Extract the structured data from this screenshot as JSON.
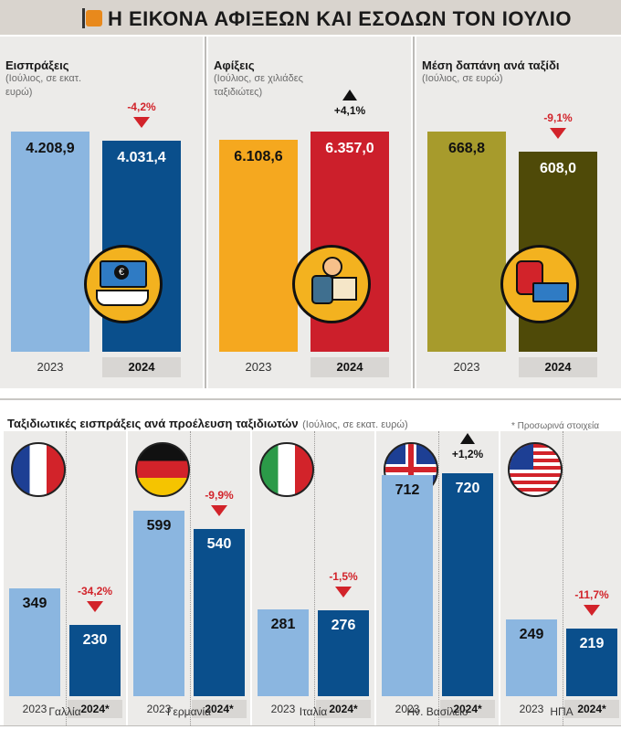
{
  "header": {
    "title": "Η ΕΙΚΟΝΑ ΑΦΙΞΕΩΝ ΚΑΙ ΕΣΟΔΩΝ ΤΟΝ ΙΟΥΛΙΟ"
  },
  "colors": {
    "light_blue": "#8bb6e0",
    "dark_blue": "#0a4f8c",
    "orange": "#f5a81f",
    "red": "#cc1f2b",
    "olive_light": "#a79b2c",
    "olive_dark": "#4f4a08",
    "down_red": "#d2232a"
  },
  "chart_data": [
    {
      "type": "bar",
      "title": "Εισπράξεις",
      "subtitle": "(Ιούλιος, σε εκατ. ευρώ)",
      "categories": [
        "2023",
        "2024"
      ],
      "values": [
        4208.9,
        4031.4
      ],
      "labels": [
        "4.208,9",
        "4.031,4"
      ],
      "change": "-4,2%",
      "direction": "down",
      "icon": "money-hand-icon"
    },
    {
      "type": "bar",
      "title": "Αφίξεις",
      "subtitle": "(Ιούλιος, σε χιλιάδες ταξιδιώτες)",
      "categories": [
        "2023",
        "2024"
      ],
      "values": [
        6108.6,
        6357.0
      ],
      "labels": [
        "6.108,6",
        "6.357,0"
      ],
      "change": "+4,1%",
      "direction": "up",
      "icon": "traveler-icon"
    },
    {
      "type": "bar",
      "title": "Μέση δαπάνη ανά ταξίδι",
      "subtitle": "(Ιούλιος, σε ευρώ)",
      "categories": [
        "2023",
        "2024"
      ],
      "values": [
        668.8,
        608.0
      ],
      "labels": [
        "668,8",
        "608,0"
      ],
      "change": "-9,1%",
      "direction": "down",
      "icon": "cash-stack-icon"
    },
    {
      "type": "bar",
      "title": "Ταξιδιωτικές εισπράξεις ανά προέλευση ταξιδιωτών",
      "subtitle": "(Ιούλιος, σε εκατ. ευρώ)",
      "note": "* Προσωρινά στοιχεία",
      "year_labels": [
        "2023",
        "2024*"
      ],
      "countries": [
        {
          "name": "Γαλλία",
          "flag": "france-flag-icon",
          "v2023": 349,
          "v2024": 230,
          "change": "-34,2%",
          "direction": "down"
        },
        {
          "name": "Γερμανία",
          "flag": "germany-flag-icon",
          "v2023": 599,
          "v2024": 540,
          "change": "-9,9%",
          "direction": "down"
        },
        {
          "name": "Ιταλία",
          "flag": "italy-flag-icon",
          "v2023": 281,
          "v2024": 276,
          "change": "-1,5%",
          "direction": "down"
        },
        {
          "name": "Ην. Βασίλειο",
          "flag": "uk-flag-icon",
          "v2023": 712,
          "v2024": 720,
          "change": "+1,2%",
          "direction": "up"
        },
        {
          "name": "ΗΠΑ",
          "flag": "usa-flag-icon",
          "v2023": 249,
          "v2024": 219,
          "change": "-11,7%",
          "direction": "down"
        }
      ],
      "ylim": [
        0,
        800
      ]
    }
  ]
}
